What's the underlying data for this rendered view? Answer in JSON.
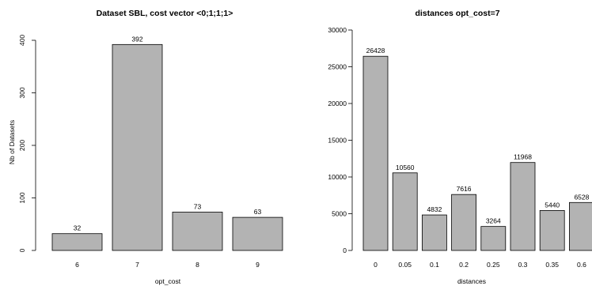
{
  "chart_data": [
    {
      "type": "bar",
      "title": "Dataset SBL, cost vector <0;1;1;1>",
      "xlabel": "opt_cost",
      "ylabel": "Nb of Datasets",
      "categories": [
        "6",
        "7",
        "8",
        "9"
      ],
      "values": [
        32,
        392,
        73,
        63
      ],
      "data_labels": [
        "32",
        "392",
        "73",
        "63"
      ],
      "yticks": [
        0,
        100,
        200,
        300,
        400
      ],
      "ytick_labels": [
        "0",
        "100",
        "200",
        "300",
        "400"
      ],
      "ylim": [
        0,
        400
      ],
      "bar_color": "#b3b3b3",
      "grid": false
    },
    {
      "type": "bar",
      "title": "distances opt_cost=7",
      "xlabel": "distances",
      "ylabel": "",
      "categories": [
        "0",
        "0.05",
        "0.1",
        "0.2",
        "0.25",
        "0.3",
        "0.35",
        "0.6"
      ],
      "values": [
        26428,
        10560,
        4832,
        7616,
        3264,
        11968,
        5440,
        6528
      ],
      "data_labels": [
        "26428",
        "10560",
        "4832",
        "7616",
        "3264",
        "11968",
        "5440",
        "6528"
      ],
      "yticks": [
        0,
        5000,
        10000,
        15000,
        20000,
        25000,
        30000
      ],
      "ytick_labels": [
        "0",
        "5000",
        "10000",
        "15000",
        "20000",
        "25000",
        "30000"
      ],
      "ylim": [
        0,
        30000
      ],
      "bar_color": "#b3b3b3",
      "grid": false
    }
  ]
}
